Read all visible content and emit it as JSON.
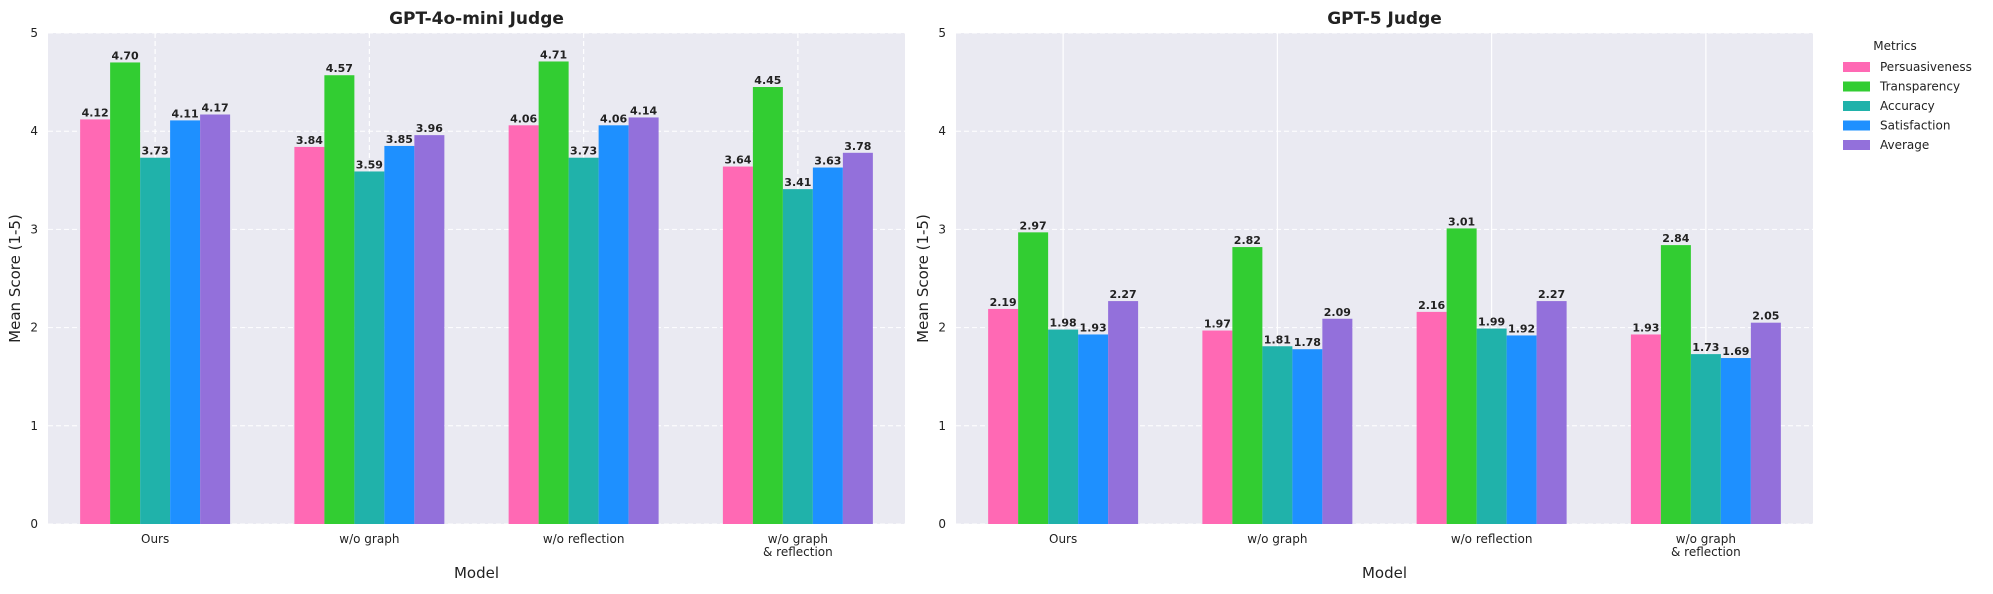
{
  "chart_data": [
    {
      "type": "bar",
      "title": "GPT-4o-mini Judge",
      "xlabel": "Model",
      "ylabel": "Mean Score (1-5)",
      "ylim": [
        0,
        5
      ],
      "yticks": [
        "0",
        "1",
        "2",
        "3",
        "4",
        "5"
      ],
      "grid": true,
      "categories": [
        "Ours",
        "w/o graph",
        "w/o reflection",
        "w/o graph\n& reflection"
      ],
      "series": [
        {
          "name": "Persuasiveness",
          "color": "#ff69b4",
          "values": [
            4.12,
            3.84,
            4.06,
            3.64
          ],
          "labels": [
            "4.12",
            "3.84",
            "4.06",
            "3.64"
          ]
        },
        {
          "name": "Transparency",
          "color": "#32cd32",
          "values": [
            4.7,
            4.57,
            4.71,
            4.45
          ],
          "labels": [
            "4.70",
            "4.57",
            "4.71",
            "4.45"
          ]
        },
        {
          "name": "Accuracy",
          "color": "#20b2aa",
          "values": [
            3.73,
            3.59,
            3.73,
            3.41
          ],
          "labels": [
            "3.73",
            "3.59",
            "3.73",
            "3.41"
          ]
        },
        {
          "name": "Satisfaction",
          "color": "#1e90ff",
          "values": [
            4.11,
            3.85,
            4.06,
            3.63
          ],
          "labels": [
            "4.11",
            "3.85",
            "4.06",
            "3.63"
          ]
        },
        {
          "name": "Average",
          "color": "#9370db",
          "values": [
            4.17,
            3.96,
            4.14,
            3.78
          ],
          "labels": [
            "4.17",
            "3.96",
            "4.14",
            "3.78"
          ]
        }
      ]
    },
    {
      "type": "bar",
      "title": "GPT-5 Judge",
      "xlabel": "Model",
      "ylabel": "Mean Score (1-5)",
      "ylim": [
        0,
        5
      ],
      "yticks": [
        "0",
        "1",
        "2",
        "3",
        "4",
        "5"
      ],
      "grid": true,
      "legend_title": "Metrics",
      "legend_position": "outside-top-right",
      "categories": [
        "Ours",
        "w/o graph",
        "w/o reflection",
        "w/o graph\n& reflection"
      ],
      "series": [
        {
          "name": "Persuasiveness",
          "color": "#ff69b4",
          "values": [
            2.19,
            1.97,
            2.16,
            1.93
          ],
          "labels": [
            "2.19",
            "1.97",
            "2.16",
            "1.93"
          ]
        },
        {
          "name": "Transparency",
          "color": "#32cd32",
          "values": [
            2.97,
            2.82,
            3.01,
            2.84
          ],
          "labels": [
            "2.97",
            "2.82",
            "3.01",
            "2.84"
          ]
        },
        {
          "name": "Accuracy",
          "color": "#20b2aa",
          "values": [
            1.98,
            1.81,
            1.99,
            1.73
          ],
          "labels": [
            "1.98",
            "1.81",
            "1.99",
            "1.73"
          ]
        },
        {
          "name": "Satisfaction",
          "color": "#1e90ff",
          "values": [
            1.93,
            1.78,
            1.92,
            1.69
          ],
          "labels": [
            "1.93",
            "1.78",
            "1.92",
            "1.69"
          ]
        },
        {
          "name": "Average",
          "color": "#9370db",
          "values": [
            2.27,
            2.09,
            2.27,
            2.05
          ],
          "labels": [
            "2.27",
            "2.09",
            "2.27",
            "2.05"
          ]
        }
      ]
    }
  ]
}
